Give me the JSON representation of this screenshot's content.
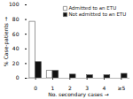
{
  "chart_data": {
    "type": "bar",
    "categories": [
      "0",
      "1",
      "2",
      "3",
      "4",
      "≥5"
    ],
    "series": [
      {
        "name": "Admitted to an ETU",
        "color": "#ffffff",
        "values": [
          77,
          10,
          0,
          0,
          0,
          0
        ]
      },
      {
        "name": "Not admitted to an ETU",
        "color": "#111111",
        "values": [
          22,
          10,
          5,
          4,
          4,
          6
        ]
      }
    ],
    "xlabel": "No. secondary cases",
    "ylabel": "% Case-patients",
    "ylim": [
      0,
      100
    ],
    "yticks": [
      0,
      20,
      40,
      60,
      80,
      100
    ],
    "legend": "upper right"
  }
}
